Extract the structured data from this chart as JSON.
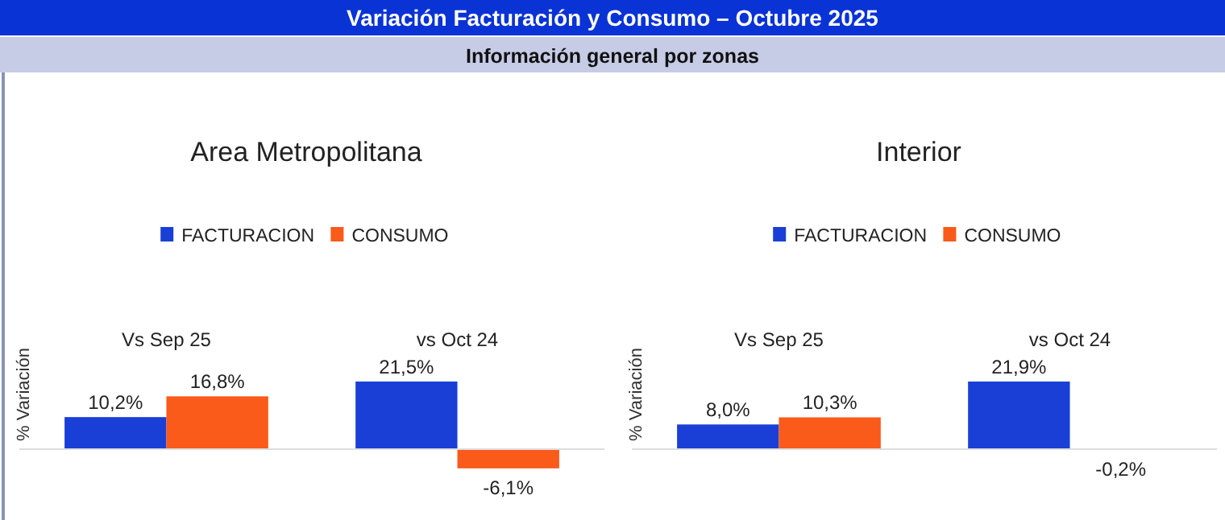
{
  "chart_data": [
    {
      "type": "other",
      "title": "Variación Facturación y Consumo –  Octubre 2025",
      "subtitle": "Información general por zonas"
    },
    {
      "type": "bar",
      "title": "Area Metropolitana",
      "ylabel": "% Variación",
      "categories": [
        "Vs Sep 25",
        "vs Oct 24"
      ],
      "legend": "top",
      "series": [
        {
          "name": "FACTURACION",
          "color": "#1a3fd6",
          "values": [
            10.2,
            21.5
          ],
          "value_labels": [
            "10,2%",
            "21,5%"
          ]
        },
        {
          "name": "CONSUMO",
          "color": "#fa5a1a",
          "values": [
            16.8,
            -6.1
          ],
          "value_labels": [
            "16,8%",
            "-6,1%"
          ]
        }
      ]
    },
    {
      "type": "bar",
      "title": "Interior",
      "ylabel": "% Variación",
      "categories": [
        "Vs Sep 25",
        "vs Oct 24"
      ],
      "legend": "top",
      "series": [
        {
          "name": "FACTURACION",
          "color": "#1a3fd6",
          "values": [
            8.0,
            21.9
          ],
          "value_labels": [
            "8,0%",
            "21,9%"
          ]
        },
        {
          "name": "CONSUMO",
          "color": "#fa5a1a",
          "values": [
            10.3,
            -0.2
          ],
          "value_labels": [
            "10,3%",
            "-0,2%"
          ]
        }
      ]
    }
  ]
}
